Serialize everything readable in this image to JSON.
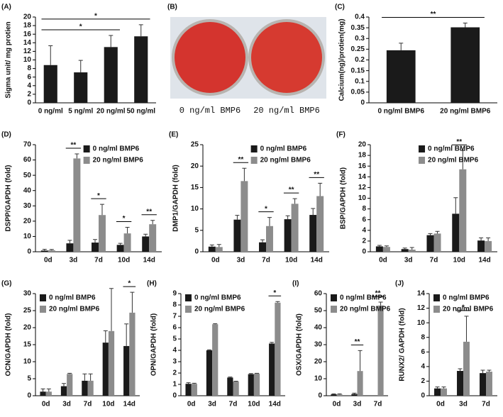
{
  "photo_panel": {
    "panel": "(B)",
    "captions": [
      "0 ng/ml BMP6",
      "20 ng/ml BMP6"
    ]
  },
  "chart_data": [
    {
      "type": "bar",
      "panel": "(A)",
      "ylabel": "Sigma unit/ mg protien",
      "categories": [
        "0 ng/ml",
        "5 ng/ml",
        "20 ng/ml",
        "50 ng/ml"
      ],
      "values": [
        8.8,
        7.1,
        13.0,
        15.5
      ],
      "errors": [
        4.5,
        2.8,
        2.7,
        2.7
      ],
      "color": "#1a1a1a",
      "ylim": [
        0,
        20
      ],
      "yticks": [
        0,
        2,
        4,
        6,
        8,
        10,
        12,
        14,
        16,
        18,
        20
      ],
      "annotations": [
        {
          "text": "*",
          "from": "0 ng/ml",
          "to": "20 ng/ml"
        },
        {
          "text": "*",
          "from": "0 ng/ml",
          "to": "50 ng/ml"
        }
      ]
    },
    {
      "type": "bar",
      "panel": "(C)",
      "ylabel": "Calcium(ng)/protien(mg)",
      "categories": [
        "0 ng/ml BMP6",
        "20 ng/ml BMP6"
      ],
      "values": [
        0.245,
        0.352
      ],
      "errors": [
        0.033,
        0.02
      ],
      "color": "#1a1a1a",
      "ylim": [
        0,
        0.4
      ],
      "yticks": [
        0,
        0.05,
        0.1,
        0.15,
        0.2,
        0.25,
        0.3,
        0.35,
        0.4
      ],
      "annotations": [
        {
          "text": "**",
          "from": "0 ng/ml BMP6",
          "to": "20 ng/ml BMP6"
        }
      ]
    },
    {
      "type": "bar",
      "panel": "(D)",
      "ylabel": "DSPP/GAPDH (fold)",
      "categories": [
        "0d",
        "3d",
        "7d",
        "10d",
        "14d"
      ],
      "legend": "upper right",
      "series": [
        {
          "name": "0 ng/ml BMP6",
          "color": "#1a1a1a",
          "values": [
            0.8,
            5.5,
            6,
            4.5,
            10
          ],
          "errors": [
            0.8,
            2,
            2,
            1,
            1.5
          ]
        },
        {
          "name": "20 ng/ml BMP6",
          "color": "#8c8c8c",
          "values": [
            1,
            61,
            24,
            12,
            18
          ],
          "errors": [
            0.5,
            3,
            7,
            4,
            2.5
          ]
        }
      ],
      "ylim": [
        0,
        70
      ],
      "yticks": [
        0,
        10,
        20,
        30,
        40,
        50,
        60,
        70
      ],
      "annotations": [
        {
          "text": "**",
          "from": "3d",
          "to": "3d"
        },
        {
          "text": "*",
          "from": "7d",
          "to": "7d"
        },
        {
          "text": "*",
          "from": "10d",
          "to": "10d"
        },
        {
          "text": "**",
          "from": "14d",
          "to": "14d"
        }
      ]
    },
    {
      "type": "bar",
      "panel": "(E)",
      "ylabel": "DMP1/GAPDH (fold)",
      "categories": [
        "0d",
        "3d",
        "7d",
        "10d",
        "14d"
      ],
      "legend": "upper right",
      "series": [
        {
          "name": "0 ng/ml BMP6",
          "color": "#1a1a1a",
          "values": [
            1.2,
            7.5,
            2.2,
            7.6,
            8.6
          ],
          "errors": [
            0.4,
            1,
            0.6,
            0.8,
            1.5
          ]
        },
        {
          "name": "20 ng/ml BMP6",
          "color": "#8c8c8c",
          "values": [
            1.1,
            16.5,
            6,
            11.2,
            13
          ],
          "errors": [
            0.6,
            3,
            2,
            1.2,
            3
          ]
        }
      ],
      "ylim": [
        0,
        25
      ],
      "yticks": [
        0,
        5,
        10,
        15,
        20,
        25
      ],
      "annotations": [
        {
          "text": "**",
          "from": "3d",
          "to": "3d"
        },
        {
          "text": "*",
          "from": "7d",
          "to": "7d"
        },
        {
          "text": "**",
          "from": "10d",
          "to": "10d"
        },
        {
          "text": "**",
          "from": "14d",
          "to": "14d"
        }
      ]
    },
    {
      "type": "bar",
      "panel": "(F)",
      "ylabel": "BSP/GAPDH (fold)",
      "categories": [
        "0d",
        "3d",
        "7d",
        "10d",
        "14d"
      ],
      "legend": "upper right",
      "series": [
        {
          "name": "0 ng/ml BMP6",
          "color": "#1a1a1a",
          "values": [
            1.0,
            0.5,
            3.1,
            7.1,
            2.1
          ],
          "errors": [
            0.2,
            0.2,
            0.3,
            3,
            0.5
          ]
        },
        {
          "name": "20 ng/ml BMP6",
          "color": "#8c8c8c",
          "values": [
            0.9,
            0.4,
            3.4,
            15.4,
            2.0
          ],
          "errors": [
            0.2,
            0.4,
            0.4,
            3.5,
            0.6
          ]
        }
      ],
      "ylim": [
        0,
        20
      ],
      "yticks": [
        0,
        2,
        4,
        6,
        8,
        10,
        12,
        14,
        16,
        18,
        20
      ],
      "annotations": [
        {
          "text": "**",
          "from": "10d",
          "to": "10d"
        }
      ]
    },
    {
      "type": "bar",
      "panel": "(G)",
      "ylabel": "OCN/GAPDH (fold)",
      "categories": [
        "0d",
        "3d",
        "7d",
        "10d",
        "14d"
      ],
      "legend": "upper left",
      "series": [
        {
          "name": "0 ng/ml BMP6",
          "color": "#1a1a1a",
          "values": [
            1.2,
            2.8,
            4.4,
            15.6,
            14.6
          ],
          "errors": [
            0.8,
            0.8,
            2,
            3.5,
            6.5
          ]
        },
        {
          "name": "20 ng/ml BMP6",
          "color": "#8c8c8c",
          "values": [
            1.2,
            6.4,
            4.4,
            19,
            24.4
          ],
          "errors": [
            0.8,
            0.2,
            2,
            12.5,
            6
          ]
        }
      ],
      "ylim": [
        0,
        30
      ],
      "yticks": [
        0,
        5,
        10,
        15,
        20,
        25,
        30
      ],
      "annotations": [
        {
          "text": "*",
          "from": "14d",
          "to": "14d"
        }
      ]
    },
    {
      "type": "bar",
      "panel": "(H)",
      "ylabel": "OPN/GAPDH (fold)",
      "categories": [
        "0d",
        "3d",
        "7d",
        "10d",
        "14d"
      ],
      "legend": "upper left",
      "series": [
        {
          "name": "0 ng/ml BMP6",
          "color": "#1a1a1a",
          "values": [
            1.05,
            4,
            1.6,
            1.9,
            4.6
          ],
          "errors": [
            0.1,
            0.05,
            0.05,
            0.05,
            0.1
          ]
        },
        {
          "name": "20 ng/ml BMP6",
          "color": "#8c8c8c",
          "values": [
            1.05,
            6.3,
            1.25,
            1.95,
            8.2
          ],
          "errors": [
            0.05,
            0.05,
            0.03,
            0.03,
            0.1
          ]
        }
      ],
      "ylim": [
        0,
        9
      ],
      "yticks": [
        0,
        1,
        2,
        3,
        4,
        5,
        6,
        7,
        8,
        9
      ],
      "annotations": [
        {
          "text": "*",
          "from": "14d",
          "to": "14d"
        }
      ]
    },
    {
      "type": "bar",
      "panel": "(I)",
      "ylabel": "OSX/GAPDH (fold)",
      "categories": [
        "0d",
        "3d",
        "7d"
      ],
      "legend": "upper left",
      "series": [
        {
          "name": "0 ng/ml BMP6",
          "color": "#1a1a1a",
          "values": [
            0.8,
            1,
            null
          ],
          "errors": [
            0.3,
            0.5,
            null
          ]
        },
        {
          "name": "20 ng/ml BMP6",
          "color": "#8c8c8c",
          "values": [
            0.8,
            14.5,
            53
          ],
          "errors": [
            0.3,
            12,
            2
          ]
        }
      ],
      "ylim": [
        0,
        60
      ],
      "yticks": [
        0,
        10,
        20,
        30,
        40,
        50,
        60
      ],
      "annotations": [
        {
          "text": "**",
          "from": "3d",
          "to": "3d"
        },
        {
          "text": "**",
          "from": "7d",
          "to": "7d"
        }
      ]
    },
    {
      "type": "bar",
      "panel": "(J)",
      "ylabel": "RUNX2/ GAPDH (fold)",
      "categories": [
        "0d",
        "3d",
        "7d"
      ],
      "legend": "upper left",
      "series": [
        {
          "name": "0 ng/ml BMP6",
          "color": "#1a1a1a",
          "values": [
            1,
            3.4,
            3.1
          ],
          "errors": [
            0.2,
            0.3,
            0.4
          ]
        },
        {
          "name": "20 ng/ml BMP6",
          "color": "#8c8c8c",
          "values": [
            1,
            7.4,
            3.3
          ],
          "errors": [
            0.2,
            3.5,
            0.2
          ]
        }
      ],
      "ylim": [
        0,
        14
      ],
      "yticks": [
        0,
        2,
        4,
        6,
        8,
        10,
        12,
        14
      ],
      "annotations": [
        {
          "text": "*",
          "from": "3d",
          "to": "3d"
        }
      ]
    }
  ]
}
